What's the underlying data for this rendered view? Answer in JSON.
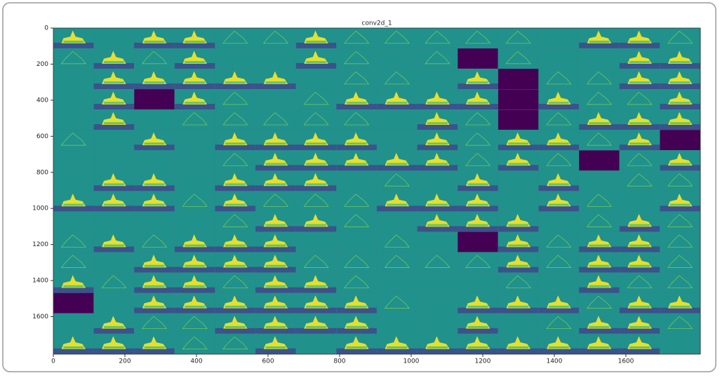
{
  "chart_data": {
    "type": "image",
    "title": "conv2d_1",
    "xlim": [
      0,
      1808
    ],
    "xticks": [
      0,
      200,
      400,
      600,
      800,
      1000,
      1200,
      1400,
      1600
    ],
    "ylim": [
      1808,
      0
    ],
    "yticks": [
      0,
      200,
      400,
      600,
      800,
      1000,
      1200,
      1400,
      1600
    ]
  }
}
